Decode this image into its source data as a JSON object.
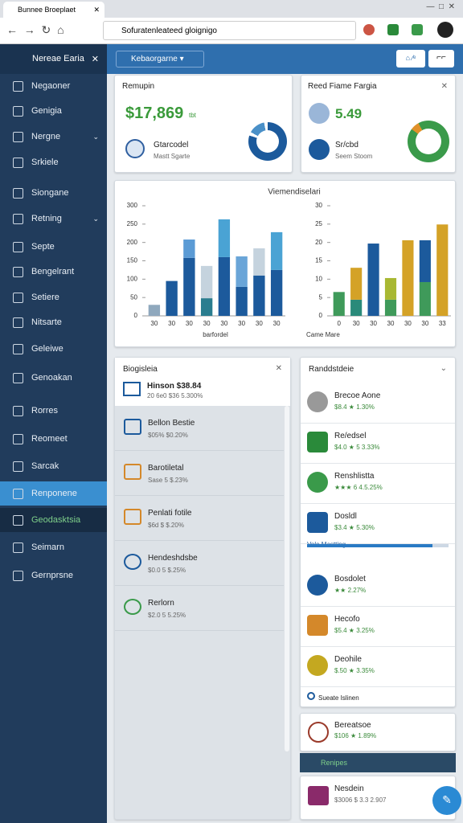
{
  "browser": {
    "tab_title": "Bunnee Broeplaet",
    "url": "Sofuratenleateed gloignigo"
  },
  "sidebar": {
    "title": "Nereae Earia",
    "items": [
      "Negaoner",
      "Genigia",
      "Nergne",
      "Srkiele",
      "Siongane",
      "Retning",
      "Septe",
      "Bengelrant",
      "Setiere",
      "Nitsarte",
      "Geleiwe",
      "Genoakan",
      "Rorres",
      "Reomeet",
      "Sarcak",
      "Renponene",
      "Geodasktsia",
      "Seimarn",
      "Gernprsne"
    ]
  },
  "topbar": {
    "dropdown": "Kebaorgarne"
  },
  "kpi_cards": [
    {
      "title": "Remupin",
      "value": "$17,869",
      "unit": "tbt",
      "item_title": "Gtarcodel",
      "item_sub": "Mastt Sgarte"
    },
    {
      "title": "Reed Fiame Fargia",
      "value": "5.49",
      "item_title": "Sr/cbd",
      "item_sub": "Seem Stoom"
    }
  ],
  "chart_card": {
    "title": "Viemendiselari",
    "charts": [
      {
        "type": "bar",
        "legend": "barfordel",
        "categories": [
          "30",
          "30",
          "30",
          "30",
          "30",
          "30",
          "30",
          "30"
        ],
        "ylim": [
          0,
          300
        ],
        "yticks": [
          0,
          50,
          100,
          150,
          200,
          250,
          300
        ],
        "series": [
          {
            "colors": [
              "#8fa8bd",
              "#1c5a9c",
              "#1c5a9c",
              "#2a7d8f",
              "#1c5a9c",
              "#1c5a9c",
              "#1c5a9c",
              "#1c5a9c"
            ],
            "values": [
              30,
              95,
              158,
              48,
              160,
              79,
              110,
              125
            ]
          },
          {
            "colors": [
              "#5b9bd5",
              "#5b9bd5",
              "#5b9bd5",
              "#c5d3de",
              "#4aa3d4",
              "#6aa5d8",
              "#c5d3de",
              "#4aa3d4"
            ],
            "values": [
              null,
              null,
              50,
              88,
              103,
              83,
              74,
              103
            ]
          }
        ]
      },
      {
        "type": "bar",
        "legend": "Came Mare",
        "categories": [
          "0",
          "30",
          "30",
          "30",
          "30",
          "30",
          "33"
        ],
        "ylim": [
          0,
          30
        ],
        "yticks": [
          0,
          5,
          10,
          15,
          20,
          25,
          30
        ],
        "series": [
          {
            "colors": [
              "#3f9a5a",
              "#2a8a7a",
              "#1c5a9c",
              "#3f9a5a",
              "#d4a227",
              "#3f9a5a",
              "#d4a227"
            ],
            "values": [
              6.5,
              4.4,
              19.7,
              4.4,
              20.6,
              9.2,
              24.9
            ]
          },
          {
            "colors": [
              "#a8b833",
              "#d4a227",
              "#a8b833",
              "#a8b833",
              "#a8b833",
              "#1c5a9c",
              "#a8b833"
            ],
            "values": [
              null,
              8.7,
              null,
              5.9,
              null,
              11.4,
              null
            ]
          }
        ]
      }
    ]
  },
  "left_panel": {
    "title": "Biogisleia",
    "top_title": "Hinson $38.84",
    "top_sub": "20 6e0 $36 5.300%",
    "items": [
      {
        "title": "Bellon Bestie",
        "sub": "$05% $0.20%"
      },
      {
        "title": "Barotiletal",
        "sub": "Sase 5 $.23%"
      },
      {
        "title": "Penlati fotile",
        "sub": "$6d $ $.20%"
      },
      {
        "title": "Hendeshdsbe",
        "sub": "$0.0 5 $.25%"
      },
      {
        "title": "Rerlorn",
        "sub": "$2.0 5 5.25%"
      }
    ]
  },
  "right_panel": {
    "title": "Randdstdeie",
    "items": [
      {
        "title": "Brecoe Aone",
        "sub": "$8.4 ★ 1.30%"
      },
      {
        "title": "Re/edsel",
        "sub": "$4.0 ★ 5 3.33%"
      },
      {
        "title": "Renshlistta",
        "sub": "★★★ 6 4.5.25%"
      },
      {
        "title": "Dosldl",
        "sub": "$3.4 ★ 5.30%"
      },
      {
        "title": "Bosdolet",
        "sub": "★★ 2.27%"
      },
      {
        "title": "Hecofo",
        "sub": "$5.4 ★ 3.25%"
      },
      {
        "title": "Deohile",
        "sub": "$.50 ★ 3.35%"
      }
    ],
    "progress_label": "Vole Mastting",
    "footer": "Sueate Islinen"
  },
  "bottom_cards": {
    "first_title": "Bereatsoe",
    "first_sub": "$106 ★ 1.89%",
    "bar": "Renipes",
    "last_title": "Nesdein",
    "last_sub": "$3006 $ 3.3 2.907"
  }
}
